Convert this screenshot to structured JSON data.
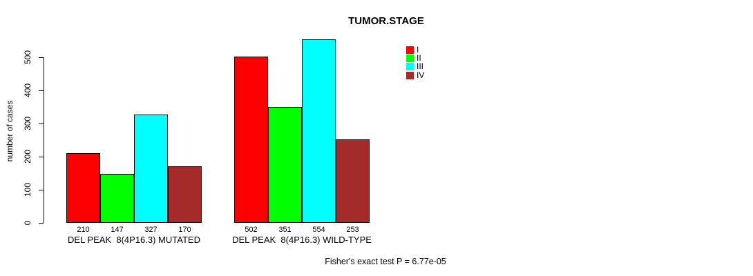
{
  "chart_data": {
    "type": "bar",
    "title": "TUMOR.STAGE",
    "ylabel": "number of cases",
    "ylim": [
      0,
      500
    ],
    "yticks": [
      0,
      100,
      200,
      300,
      400,
      500
    ],
    "grid": false,
    "legend_position": "top-right-of-plot",
    "series": [
      {
        "name": "I",
        "color": "#FF0000"
      },
      {
        "name": "II",
        "color": "#00FF00"
      },
      {
        "name": "III",
        "color": "#00FFFF"
      },
      {
        "name": "IV",
        "color": "#A52A2A"
      }
    ],
    "groups": [
      {
        "label": "DEL PEAK  8(4P16.3) MUTATED",
        "values": [
          210,
          147,
          327,
          170
        ]
      },
      {
        "label": "DEL PEAK  8(4P16.3) WILD-TYPE",
        "values": [
          502,
          351,
          554,
          253
        ]
      }
    ]
  },
  "footnote": "Fisher's exact test P = 6.77e-05"
}
